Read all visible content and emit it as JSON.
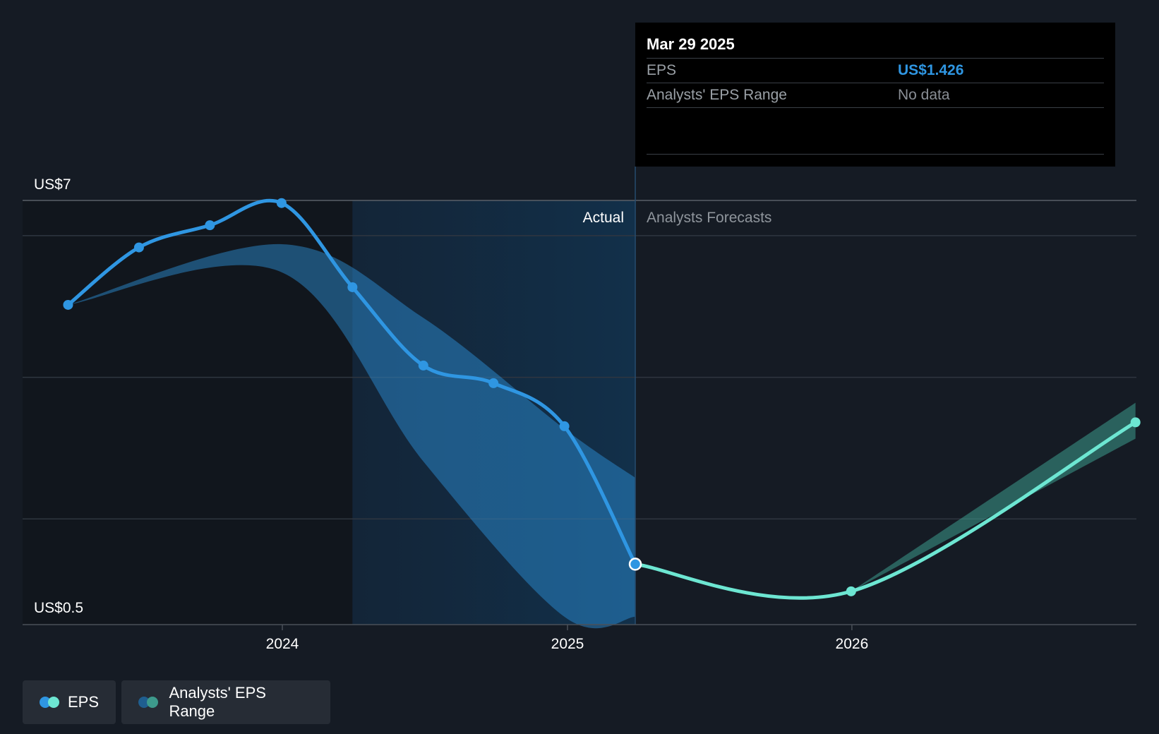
{
  "chart_data": {
    "type": "line",
    "y_axis": {
      "unit": "US$",
      "ylim": [
        0.5,
        7
      ],
      "top_label": "US$7",
      "bottom_label": "US$0.5",
      "gridlines": [
        7,
        6.46,
        4.29,
        2.12
      ]
    },
    "x_axis": {
      "ticks": [
        {
          "date": "2024-01-01",
          "label": "2024"
        },
        {
          "date": "2025-01-01",
          "label": "2025"
        },
        {
          "date": "2026-01-01",
          "label": "2026"
        }
      ]
    },
    "section_labels": {
      "actual": "Actual",
      "forecast": "Analysts Forecasts"
    },
    "divider_date": "2025-03-29",
    "highlight_start": "2024-03-31",
    "series": [
      {
        "name": "EPS",
        "color": "#2f96e2",
        "points": [
          {
            "x": "2023-04-01",
            "y": 5.4
          },
          {
            "x": "2023-07-01",
            "y": 6.28
          },
          {
            "x": "2023-09-30",
            "y": 6.62
          },
          {
            "x": "2023-12-31",
            "y": 6.96
          },
          {
            "x": "2024-03-31",
            "y": 5.67
          },
          {
            "x": "2024-06-30",
            "y": 4.47
          },
          {
            "x": "2024-09-28",
            "y": 4.2
          },
          {
            "x": "2024-12-28",
            "y": 3.54
          },
          {
            "x": "2025-03-29",
            "y": 1.426
          }
        ]
      },
      {
        "name": "EPS",
        "color": "#6de6d2",
        "points": [
          {
            "x": "2025-03-29",
            "y": 1.426
          },
          {
            "x": "2025-12-31",
            "y": 1.01
          },
          {
            "x": "2026-12-31",
            "y": 3.6
          }
        ]
      }
    ],
    "analysts_eps_range": {
      "name": "Analysts' EPS Range",
      "color": "#2f96e2",
      "upper": [
        {
          "x": "2023-04-01",
          "y": 5.4
        },
        {
          "x": "2023-12-31",
          "y": 6.33
        },
        {
          "x": "2024-06-30",
          "y": 5.2
        },
        {
          "x": "2024-12-28",
          "y": 3.5
        },
        {
          "x": "2025-03-29",
          "y": 2.75
        }
      ],
      "lower": [
        {
          "x": "2023-04-01",
          "y": 5.4
        },
        {
          "x": "2023-12-31",
          "y": 5.9
        },
        {
          "x": "2024-06-30",
          "y": 3.0
        },
        {
          "x": "2024-12-28",
          "y": 0.62
        },
        {
          "x": "2025-03-29",
          "y": 0.62
        }
      ],
      "forecast_upper": [
        {
          "x": "2025-12-31",
          "y": 1.03
        },
        {
          "x": "2026-12-31",
          "y": 3.9
        }
      ],
      "forecast_lower": [
        {
          "x": "2025-12-31",
          "y": 0.99
        },
        {
          "x": "2026-12-31",
          "y": 3.35
        }
      ]
    }
  },
  "tooltip": {
    "date": "Mar 29 2025",
    "rows": [
      {
        "label": "EPS",
        "value": "US$1.426"
      },
      {
        "label": "Analysts' EPS Range",
        "value": "No data"
      }
    ]
  },
  "legend": [
    {
      "label": "EPS",
      "colors": [
        "#2f96e2",
        "#6de6d2"
      ]
    },
    {
      "label": "Analysts' EPS Range",
      "colors": [
        "#1f5e8f",
        "#3d9a8c"
      ]
    }
  ]
}
